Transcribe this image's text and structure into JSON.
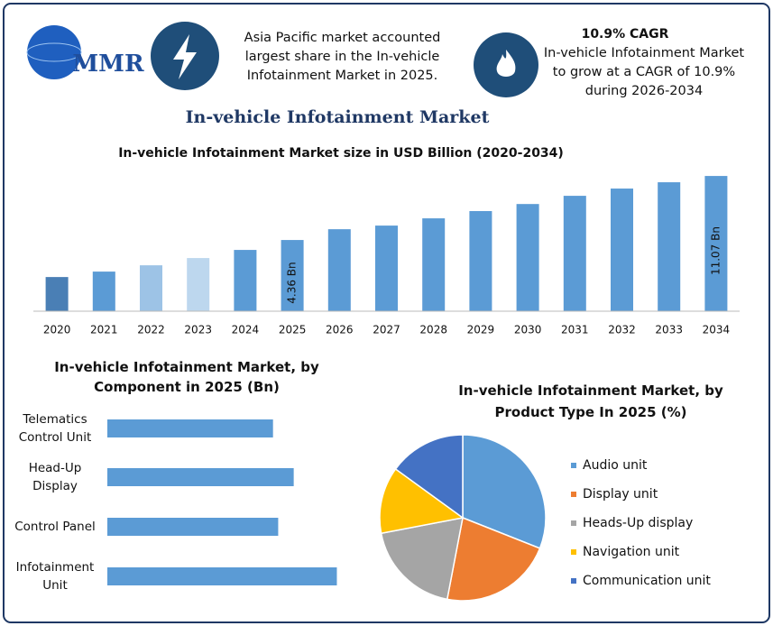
{
  "header": {
    "logo": "MMR",
    "title": "In-vehicle Infotainment Market",
    "info": "Asia Pacific market accounted largest share in the In-vehicle Infotainment Market in 2025.",
    "cagr_title": "10.9% CAGR",
    "cagr_text": "In-vehicle Infotainment Market to grow at a CAGR of 10.9% during 2026-2034"
  },
  "chart_data": [
    {
      "type": "bar",
      "title": "In-vehicle Infotainment Market size in USD Billion (2020-2034)",
      "categories": [
        "2020",
        "2021",
        "2022",
        "2023",
        "2024",
        "2025",
        "2026",
        "2027",
        "2028",
        "2029",
        "2030",
        "2031",
        "2032",
        "2033",
        "2034"
      ],
      "values": [
        0.48,
        1.05,
        1.71,
        2.47,
        3.32,
        4.36,
        5.49,
        5.87,
        6.63,
        7.39,
        8.13,
        8.99,
        9.75,
        10.41,
        11.07
      ],
      "value_labels": [
        null,
        null,
        null,
        null,
        null,
        "4.36 Bn",
        null,
        null,
        null,
        null,
        null,
        null,
        null,
        null,
        "11.07 Bn"
      ],
      "colors": [
        "#4a7fb5",
        "#5b9bd5",
        "#9dc3e6",
        "#bdd7ee",
        "#5b9bd5",
        "#5b9bd5",
        "#5b9bd5",
        "#5b9bd5",
        "#5b9bd5",
        "#5b9bd5",
        "#5b9bd5",
        "#5b9bd5",
        "#5b9bd5",
        "#5b9bd5",
        "#5b9bd5"
      ],
      "ylim": [
        -3.1,
        11.55
      ]
    },
    {
      "type": "barh",
      "title": "In-vehicle Infotainment Market, by Component in 2025 (Bn)",
      "categories": [
        "Telematics Control Unit",
        "Head-Up Display",
        "Control Panel",
        "Infotainment Unit"
      ],
      "values": [
        0.96,
        1.08,
        0.99,
        1.33
      ],
      "color": "#5b9bd5",
      "xlim": [
        0,
        1.5
      ]
    },
    {
      "type": "pie",
      "title": "In-vehicle Infotainment Market, by Product Type In 2025 (%)",
      "categories": [
        "Audio unit",
        "Display unit",
        "Heads-Up display",
        "Navigation unit",
        "Communication unit"
      ],
      "values": [
        31,
        22,
        19,
        13,
        15
      ],
      "colors": [
        "#5b9bd5",
        "#ed7d31",
        "#a5a5a5",
        "#ffc000",
        "#4472c4"
      ],
      "legend": "right"
    }
  ]
}
